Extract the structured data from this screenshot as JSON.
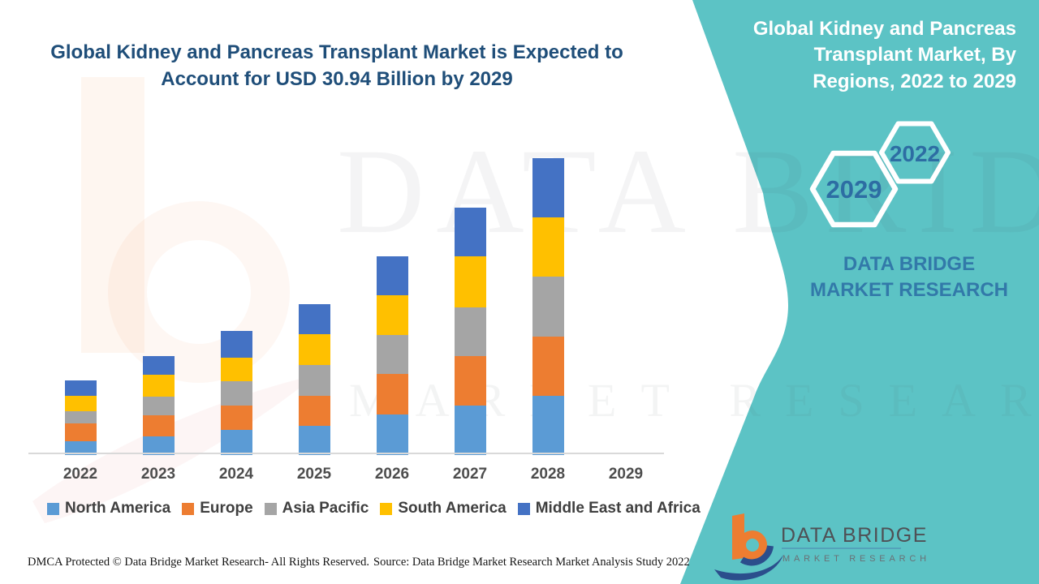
{
  "title": "Global Kidney and Pancreas Transplant Market is Expected to Account for USD 30.94 Billion by 2029",
  "side_panel": {
    "title": "Global Kidney and Pancreas Transplant Market, By Regions, 2022 to 2029",
    "hexagons": [
      {
        "label": "2029"
      },
      {
        "label": "2022"
      }
    ],
    "brand_text": "DATA BRIDGE MARKET RESEARCH"
  },
  "watermarks": {
    "big": "DATA BRIDGE",
    "sub": "MARKET RESEARCH"
  },
  "logo": {
    "name": "DATA BRIDGE",
    "sub": "MARKET RESEARCH"
  },
  "footer": {
    "left": "DMCA Protected © Data Bridge Market Research- All Rights Reserved.",
    "right": "Source: Data Bridge Market Research Market Analysis Study 2022"
  },
  "colors": {
    "teal_panel": "#5CC3C5",
    "headline_blue": "#1F4E79",
    "hexagon_year_blue": "#2D6DA3",
    "brand_blue": "#3279A9",
    "axis_gray": "#D9D9D9",
    "tick_label_gray": "#4D4D4D",
    "legend_text_gray": "#3F3F3F",
    "logo_orange": "#ED7D31",
    "logo_navy": "#2B4E8C"
  },
  "chart_data": {
    "type": "bar",
    "stacked": true,
    "title": "Global Kidney and Pancreas Transplant Market is Expected to Account for USD 30.94 Billion by 2029",
    "xlabel": "",
    "ylabel": "",
    "units": "relative height units (value axis unlabeled in source image)",
    "grid": false,
    "legend_position": "bottom",
    "value_axis_visible": false,
    "ylim": [
      0,
      380
    ],
    "categories": [
      "2022",
      "2023",
      "2024",
      "2025",
      "2026",
      "2027",
      "2028",
      "2029"
    ],
    "series": [
      {
        "name": "North America",
        "color": "#5B9BD5",
        "values": [
          17,
          23,
          31,
          36,
          50,
          61,
          73,
          0
        ]
      },
      {
        "name": "Europe",
        "color": "#ED7D31",
        "values": [
          22,
          26,
          30,
          37,
          50,
          61,
          73,
          0
        ]
      },
      {
        "name": "Asia Pacific",
        "color": "#A5A5A5",
        "values": [
          15,
          23,
          30,
          38,
          48,
          60,
          74,
          0
        ]
      },
      {
        "name": "South America",
        "color": "#FFC000",
        "values": [
          19,
          27,
          29,
          38,
          49,
          63,
          73,
          0
        ]
      },
      {
        "name": "Middle East and Africa",
        "color": "#4472C4",
        "values": [
          19,
          23,
          33,
          37,
          48,
          60,
          73,
          0
        ]
      }
    ],
    "totals": [
      92,
      122,
      153,
      186,
      245,
      305,
      366,
      0
    ]
  }
}
